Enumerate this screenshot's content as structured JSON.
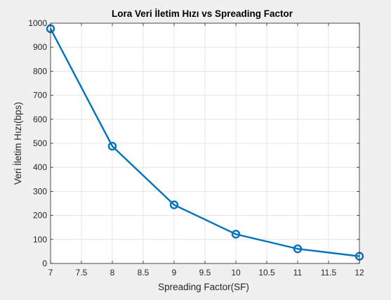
{
  "chart_data": {
    "type": "line",
    "title": "Lora Veri İletim Hızı vs Spreading Factor",
    "xlabel": "Spreading Factor(SF)",
    "ylabel": "Veri İletim Hızı(bps)",
    "xlim": [
      7,
      12
    ],
    "ylim": [
      0,
      1000
    ],
    "xticks": [
      7,
      7.5,
      8,
      8.5,
      9,
      9.5,
      10,
      10.5,
      11,
      11.5,
      12
    ],
    "xtick_labels": [
      "7",
      "7.5",
      "8",
      "8.5",
      "9",
      "9.5",
      "10",
      "10.5",
      "11",
      "11.5",
      "12"
    ],
    "yticks": [
      0,
      100,
      200,
      300,
      400,
      500,
      600,
      700,
      800,
      900,
      1000
    ],
    "ytick_labels": [
      "0",
      "100",
      "200",
      "300",
      "400",
      "500",
      "600",
      "700",
      "800",
      "900",
      "1000"
    ],
    "grid": true,
    "marker": "circle",
    "series": [
      {
        "x": [
          7,
          8,
          9,
          10,
          11,
          12
        ],
        "y": [
          977,
          488,
          244,
          122,
          61,
          30
        ],
        "color": "#0072BD"
      }
    ]
  },
  "colors": {
    "figure_background": "#f0f0f0",
    "axes_background": "#ffffff",
    "grid": "#dfdfdf",
    "axis": "#262626",
    "line": "#0072BD"
  }
}
